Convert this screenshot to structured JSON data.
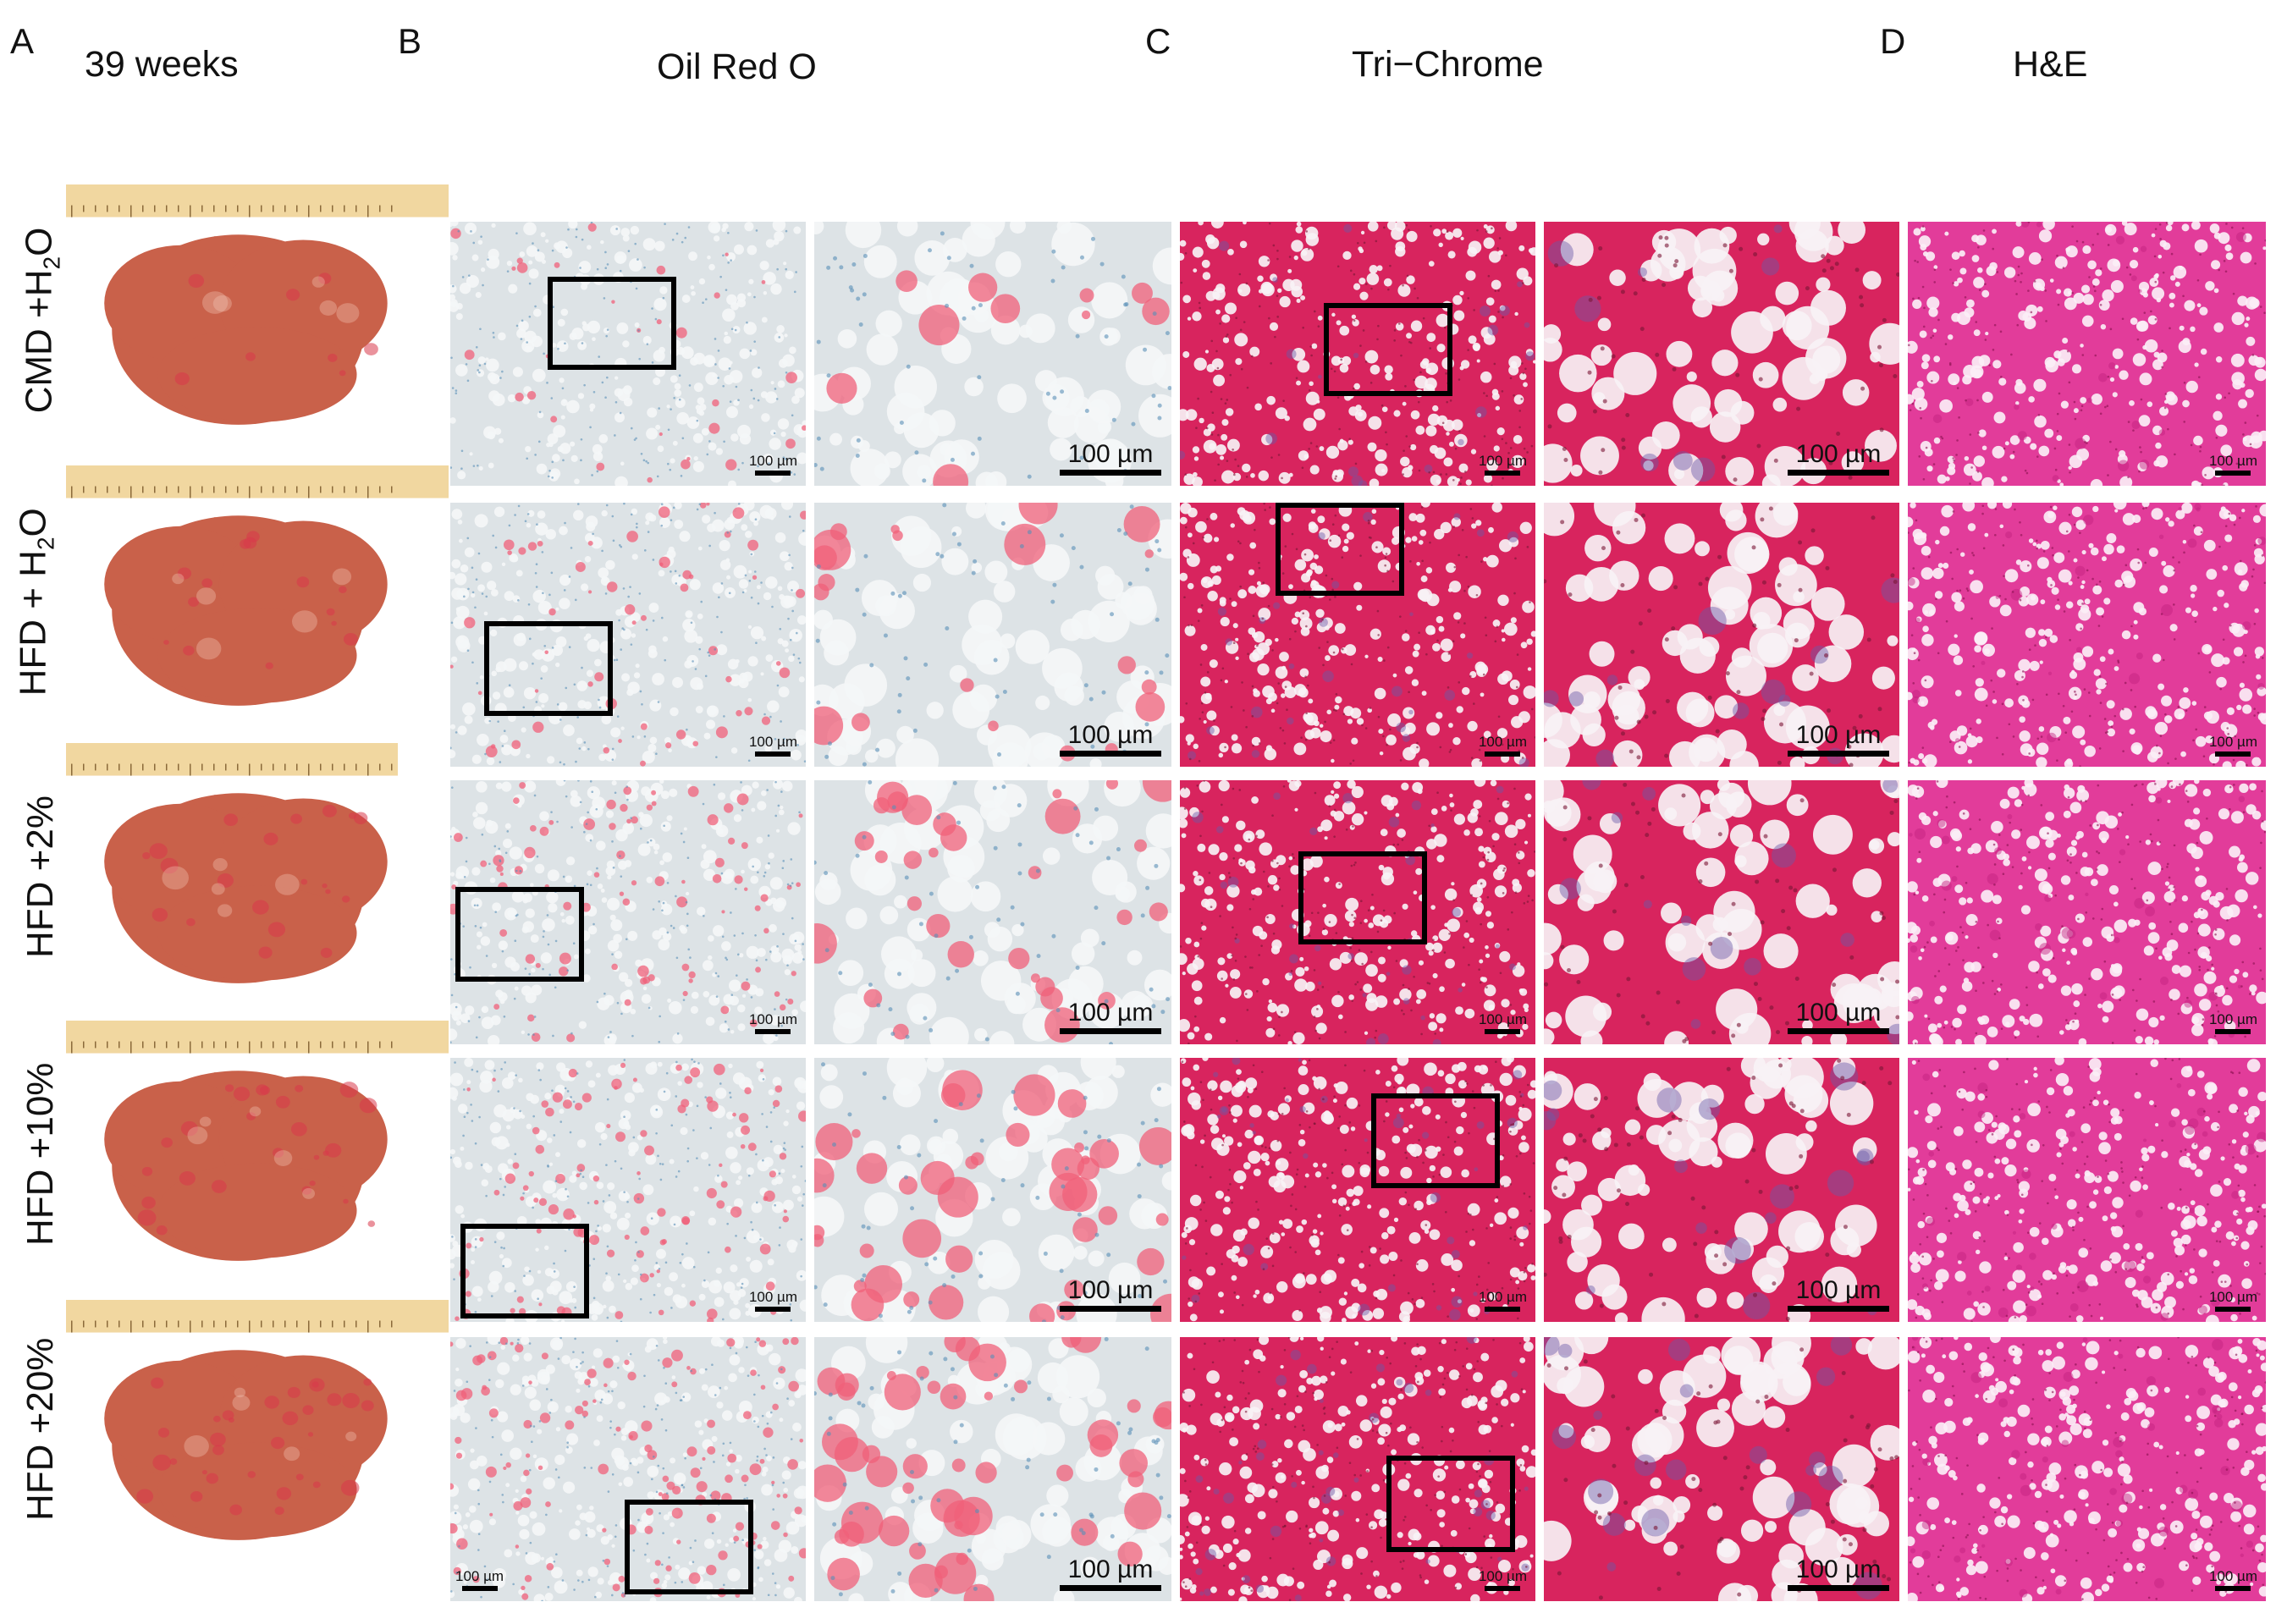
{
  "panel_letters": [
    "A",
    "B",
    "C",
    "D"
  ],
  "column_titles": {
    "A": "39 weeks",
    "B": "Oil Red O",
    "C": "Tri−Chrome",
    "D": "H&E"
  },
  "rows": [
    {
      "label_main": "CMD +H",
      "label_sub": "2",
      "label_tail": "O"
    },
    {
      "label_main": "HFD + H",
      "label_sub": "2",
      "label_tail": "O"
    },
    {
      "label_main": "HFD +2%",
      "label_sub": "",
      "label_tail": ""
    },
    {
      "label_main": "HFD +10%",
      "label_sub": "",
      "label_tail": ""
    },
    {
      "label_main": "HFD +20%",
      "label_sub": "",
      "label_tail": ""
    }
  ],
  "scale_bar_label": "100 µm",
  "colors": {
    "oil_red_background": "#dde3e6",
    "oil_red_lipid": "#f0607a",
    "oil_red_nuclei": "#5a8fb8",
    "trichrome_background": "#d8245e",
    "trichrome_collagen": "#6a5aa8",
    "he_background": "#e23c9a",
    "liver_tissue": "#c9614a",
    "ruler": "#f1d7a0"
  }
}
